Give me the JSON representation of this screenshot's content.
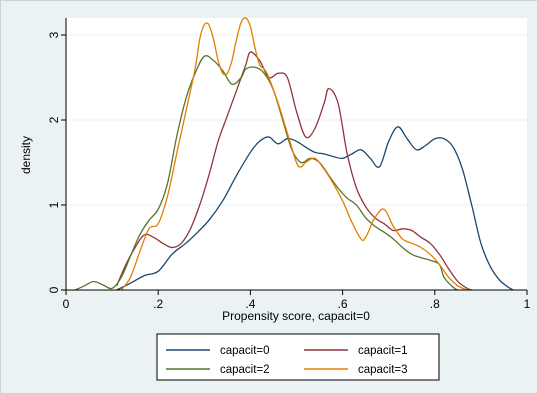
{
  "chart_data": {
    "type": "line",
    "title": "",
    "xlabel": "Propensity score, capacit=0",
    "ylabel": "density",
    "xlim": [
      0,
      1
    ],
    "ylim": [
      0,
      3.2
    ],
    "xticks": [
      {
        "value": 0,
        "label": "0"
      },
      {
        "value": 0.2,
        "label": ".2"
      },
      {
        "value": 0.4,
        "label": ".4"
      },
      {
        "value": 0.6,
        "label": ".6"
      },
      {
        "value": 0.8,
        "label": ".8"
      },
      {
        "value": 1,
        "label": "1"
      }
    ],
    "yticks": [
      {
        "value": 0,
        "label": "0"
      },
      {
        "value": 1,
        "label": "1"
      },
      {
        "value": 2,
        "label": "2"
      },
      {
        "value": 3,
        "label": "3"
      }
    ],
    "grid": "horizontal",
    "legend_position": "bottom",
    "series": [
      {
        "name": "capacit=0",
        "color": "#1a476f",
        "points": [
          [
            0.11,
            0
          ],
          [
            0.14,
            0.08
          ],
          [
            0.17,
            0.17
          ],
          [
            0.2,
            0.22
          ],
          [
            0.23,
            0.42
          ],
          [
            0.26,
            0.55
          ],
          [
            0.28,
            0.65
          ],
          [
            0.31,
            0.82
          ],
          [
            0.34,
            1.05
          ],
          [
            0.37,
            1.35
          ],
          [
            0.4,
            1.62
          ],
          [
            0.42,
            1.75
          ],
          [
            0.44,
            1.8
          ],
          [
            0.46,
            1.72
          ],
          [
            0.48,
            1.78
          ],
          [
            0.5,
            1.75
          ],
          [
            0.52,
            1.68
          ],
          [
            0.54,
            1.62
          ],
          [
            0.56,
            1.6
          ],
          [
            0.58,
            1.57
          ],
          [
            0.6,
            1.55
          ],
          [
            0.62,
            1.6
          ],
          [
            0.64,
            1.65
          ],
          [
            0.66,
            1.55
          ],
          [
            0.68,
            1.45
          ],
          [
            0.7,
            1.75
          ],
          [
            0.72,
            1.92
          ],
          [
            0.74,
            1.78
          ],
          [
            0.76,
            1.65
          ],
          [
            0.78,
            1.7
          ],
          [
            0.8,
            1.78
          ],
          [
            0.82,
            1.78
          ],
          [
            0.84,
            1.68
          ],
          [
            0.86,
            1.42
          ],
          [
            0.88,
            1.0
          ],
          [
            0.9,
            0.55
          ],
          [
            0.92,
            0.28
          ],
          [
            0.94,
            0.12
          ],
          [
            0.96,
            0.03
          ],
          [
            0.97,
            0
          ]
        ]
      },
      {
        "name": "capacit=1",
        "color": "#90353b",
        "points": [
          [
            0.11,
            0.05
          ],
          [
            0.13,
            0.3
          ],
          [
            0.15,
            0.5
          ],
          [
            0.17,
            0.65
          ],
          [
            0.19,
            0.62
          ],
          [
            0.21,
            0.55
          ],
          [
            0.23,
            0.5
          ],
          [
            0.25,
            0.55
          ],
          [
            0.27,
            0.72
          ],
          [
            0.29,
            1.0
          ],
          [
            0.31,
            1.35
          ],
          [
            0.33,
            1.75
          ],
          [
            0.35,
            2.05
          ],
          [
            0.37,
            2.35
          ],
          [
            0.39,
            2.65
          ],
          [
            0.4,
            2.8
          ],
          [
            0.42,
            2.7
          ],
          [
            0.44,
            2.5
          ],
          [
            0.46,
            2.55
          ],
          [
            0.48,
            2.5
          ],
          [
            0.5,
            2.1
          ],
          [
            0.52,
            1.8
          ],
          [
            0.54,
            1.9
          ],
          [
            0.56,
            2.2
          ],
          [
            0.57,
            2.37
          ],
          [
            0.59,
            2.2
          ],
          [
            0.61,
            1.6
          ],
          [
            0.63,
            1.2
          ],
          [
            0.65,
            0.98
          ],
          [
            0.67,
            0.85
          ],
          [
            0.69,
            0.78
          ],
          [
            0.71,
            0.7
          ],
          [
            0.73,
            0.72
          ],
          [
            0.75,
            0.7
          ],
          [
            0.77,
            0.62
          ],
          [
            0.79,
            0.55
          ],
          [
            0.81,
            0.42
          ],
          [
            0.83,
            0.25
          ],
          [
            0.85,
            0.1
          ],
          [
            0.87,
            0.02
          ],
          [
            0.88,
            0
          ]
        ]
      },
      {
        "name": "capacit=2",
        "color": "#55752f",
        "points": [
          [
            0.02,
            0
          ],
          [
            0.04,
            0.05
          ],
          [
            0.06,
            0.1
          ],
          [
            0.08,
            0.06
          ],
          [
            0.1,
            0.02
          ],
          [
            0.12,
            0.15
          ],
          [
            0.14,
            0.4
          ],
          [
            0.16,
            0.65
          ],
          [
            0.18,
            0.82
          ],
          [
            0.2,
            0.95
          ],
          [
            0.22,
            1.25
          ],
          [
            0.24,
            1.8
          ],
          [
            0.26,
            2.25
          ],
          [
            0.28,
            2.55
          ],
          [
            0.3,
            2.75
          ],
          [
            0.32,
            2.7
          ],
          [
            0.34,
            2.58
          ],
          [
            0.36,
            2.42
          ],
          [
            0.38,
            2.5
          ],
          [
            0.39,
            2.6
          ],
          [
            0.41,
            2.62
          ],
          [
            0.43,
            2.55
          ],
          [
            0.45,
            2.35
          ],
          [
            0.47,
            2.0
          ],
          [
            0.49,
            1.65
          ],
          [
            0.51,
            1.5
          ],
          [
            0.53,
            1.55
          ],
          [
            0.55,
            1.5
          ],
          [
            0.57,
            1.35
          ],
          [
            0.59,
            1.2
          ],
          [
            0.61,
            1.08
          ],
          [
            0.63,
            1.0
          ],
          [
            0.65,
            0.85
          ],
          [
            0.67,
            0.75
          ],
          [
            0.69,
            0.68
          ],
          [
            0.71,
            0.6
          ],
          [
            0.73,
            0.5
          ],
          [
            0.75,
            0.42
          ],
          [
            0.77,
            0.38
          ],
          [
            0.79,
            0.35
          ],
          [
            0.81,
            0.3
          ],
          [
            0.82,
            0.15
          ],
          [
            0.84,
            0.03
          ],
          [
            0.85,
            0
          ]
        ]
      },
      {
        "name": "capacit=3",
        "color": "#e37e00",
        "points": [
          [
            0.12,
            0
          ],
          [
            0.14,
            0.15
          ],
          [
            0.16,
            0.45
          ],
          [
            0.18,
            0.72
          ],
          [
            0.2,
            0.78
          ],
          [
            0.22,
            1.1
          ],
          [
            0.24,
            1.6
          ],
          [
            0.26,
            2.1
          ],
          [
            0.28,
            2.6
          ],
          [
            0.29,
            2.95
          ],
          [
            0.3,
            3.12
          ],
          [
            0.31,
            3.12
          ],
          [
            0.32,
            2.95
          ],
          [
            0.33,
            2.7
          ],
          [
            0.34,
            2.55
          ],
          [
            0.35,
            2.55
          ],
          [
            0.36,
            2.7
          ],
          [
            0.37,
            2.95
          ],
          [
            0.38,
            3.15
          ],
          [
            0.39,
            3.2
          ],
          [
            0.4,
            3.1
          ],
          [
            0.41,
            2.85
          ],
          [
            0.42,
            2.65
          ],
          [
            0.43,
            2.6
          ],
          [
            0.44,
            2.5
          ],
          [
            0.46,
            2.2
          ],
          [
            0.48,
            1.85
          ],
          [
            0.5,
            1.5
          ],
          [
            0.51,
            1.45
          ],
          [
            0.52,
            1.5
          ],
          [
            0.54,
            1.55
          ],
          [
            0.56,
            1.42
          ],
          [
            0.58,
            1.25
          ],
          [
            0.6,
            1.05
          ],
          [
            0.62,
            0.8
          ],
          [
            0.64,
            0.6
          ],
          [
            0.65,
            0.62
          ],
          [
            0.67,
            0.85
          ],
          [
            0.69,
            0.95
          ],
          [
            0.71,
            0.75
          ],
          [
            0.73,
            0.6
          ],
          [
            0.75,
            0.55
          ],
          [
            0.77,
            0.5
          ],
          [
            0.79,
            0.42
          ],
          [
            0.81,
            0.3
          ],
          [
            0.83,
            0.15
          ],
          [
            0.85,
            0.05
          ],
          [
            0.87,
            0
          ]
        ]
      }
    ]
  }
}
